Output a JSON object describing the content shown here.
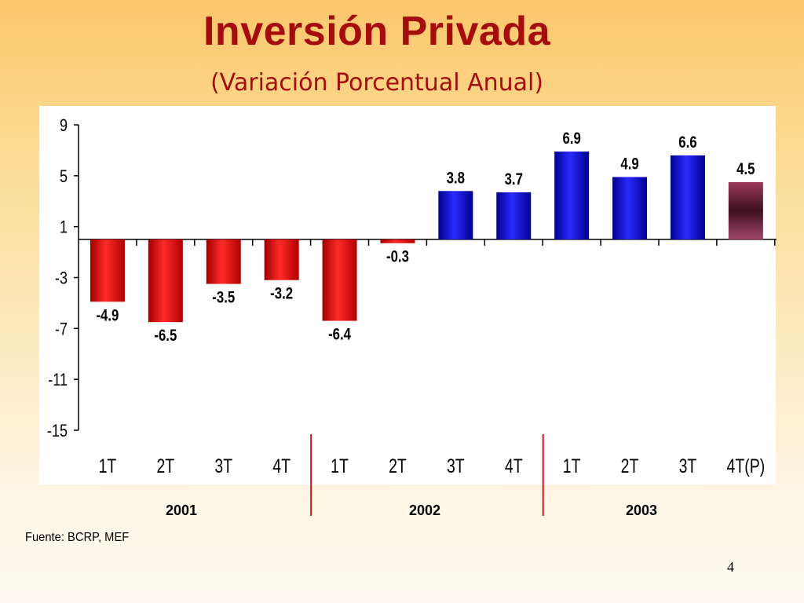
{
  "slide": {
    "title": "Inversión Privada",
    "subtitle": "(Variación Porcentual Anual)",
    "source": "Fuente: BCRP, MEF",
    "page_number": "4",
    "years": [
      "2001",
      "2002",
      "2003"
    ]
  },
  "chart_data": {
    "type": "bar",
    "categories": [
      "1T",
      "2T",
      "3T",
      "4T",
      "1T",
      "2T",
      "3T",
      "4T",
      "1T",
      "2T",
      "3T",
      "4T(P)"
    ],
    "values": [
      -4.9,
      -6.5,
      -3.5,
      -3.2,
      -6.4,
      -0.3,
      3.8,
      3.7,
      6.9,
      4.9,
      6.6,
      4.5
    ],
    "value_labels": [
      "-4.9",
      "-6.5",
      "-3.5",
      "-3.2",
      "-6.4",
      "-0.3",
      "3.8",
      "3.7",
      "6.9",
      "4.9",
      "6.6",
      "4.5"
    ],
    "yticks": [
      "9",
      "5",
      "1",
      "-3",
      "-7",
      "-11",
      "-15"
    ],
    "ylim": [
      -15,
      9
    ],
    "colors": {
      "negative": "#e01010",
      "positive": "#1010d8",
      "projected": "#7a1f3d",
      "year_separator": "#d21a1a"
    }
  }
}
